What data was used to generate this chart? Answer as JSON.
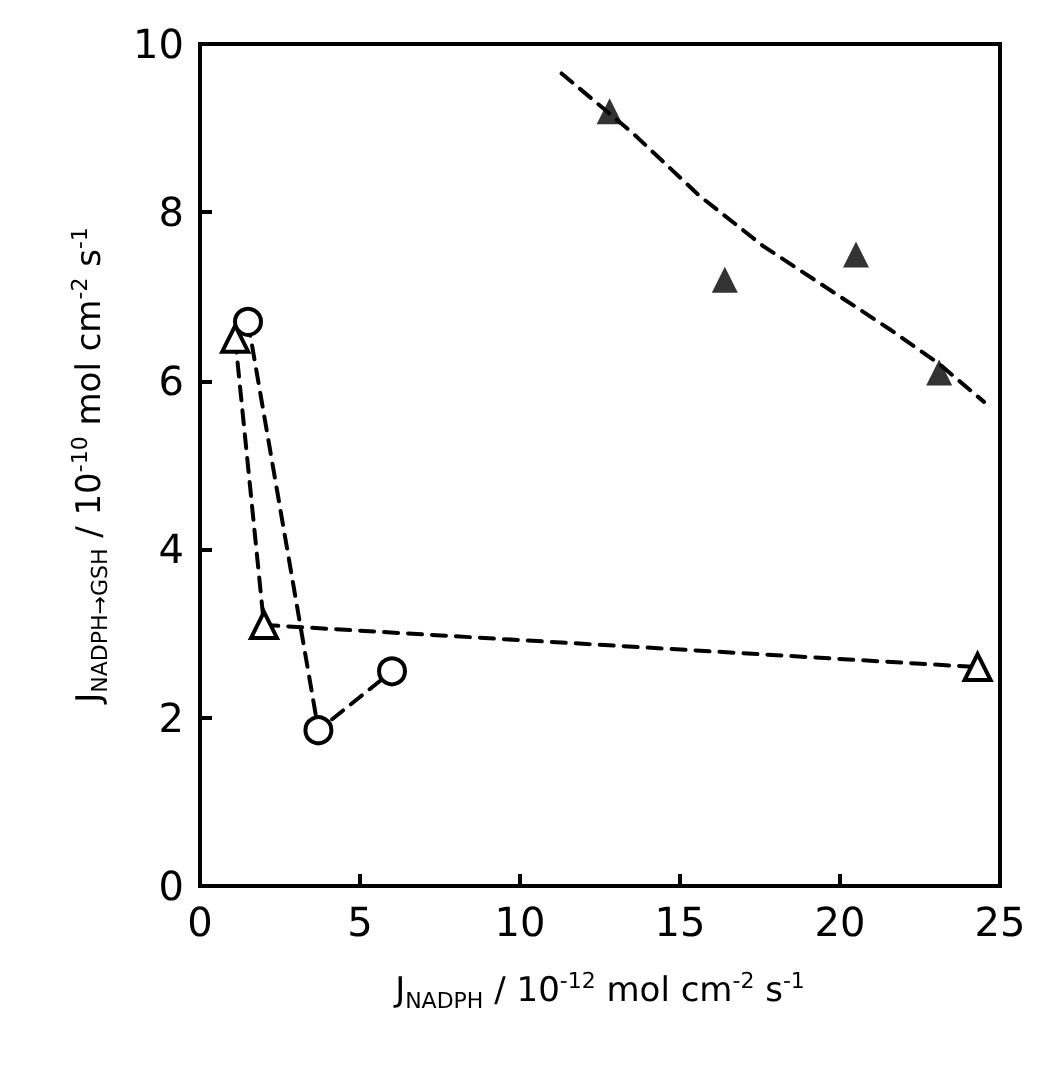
{
  "chart_data": {
    "type": "scatter",
    "xlabel": "J$_{NADPH}$ / 10$^{-12}$ mol cm$^{-2}$ s$^{-1}$",
    "ylabel": "J$_{NADPH→GSH}$ / 10$^{-10}$ mol cm$^{-2}$ s$^{-1}$",
    "xlim": [
      0,
      25
    ],
    "xticks": [
      0,
      5,
      10,
      15,
      20,
      25
    ],
    "ylim": [
      0,
      10
    ],
    "yticks": [
      0,
      2,
      4,
      6,
      8,
      10
    ],
    "grid": false,
    "series": [
      {
        "color": "#000000",
        "marker": "triangle",
        "x": [
          12.8,
          16.4,
          20.5,
          23.1
        ],
        "values": [
          9.2,
          7.2,
          7.5,
          6.1
        ]
      },
      {
        "type": "line",
        "color": "#000000",
        "marker": "none",
        "line_style": "dashed",
        "x": [
          11.3,
          13.5,
          15.6,
          17.6,
          19.6,
          21.6,
          23.1,
          24.5
        ],
        "values": [
          9.65,
          8.95,
          8.2,
          7.6,
          7.1,
          6.6,
          6.2,
          5.75
        ]
      },
      {
        "type": "line",
        "color": "#000000",
        "marker": "circle",
        "line_style": "dashed",
        "x": [
          1.5,
          3.7,
          6.0
        ],
        "values": [
          6.7,
          1.85,
          2.55
        ]
      },
      {
        "type": "line",
        "color": "#000000",
        "marker": "triangle",
        "line_style": "dashed",
        "x": [
          1.1,
          2.0,
          24.3
        ],
        "values": [
          6.5,
          3.1,
          2.6
        ]
      }
    ]
  }
}
